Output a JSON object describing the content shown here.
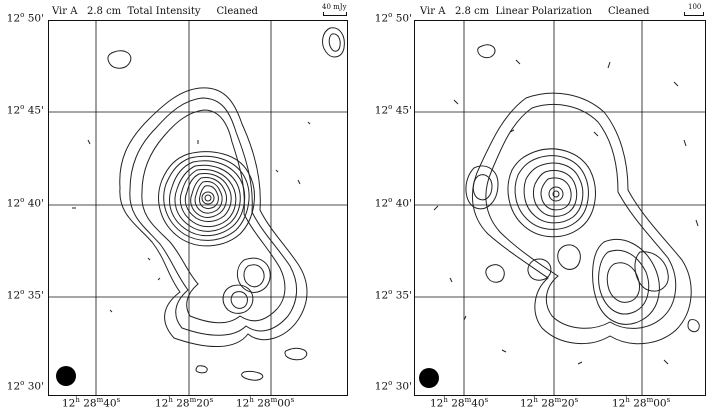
{
  "left": {
    "title_source": "Vir A",
    "title_wavelength": "2.8 cm",
    "title_mode": "Total Intensity",
    "title_status": "Cleaned",
    "scale_label": "40 mJy"
  },
  "right": {
    "title_source": "Vir A",
    "title_wavelength": "2.8 cm",
    "title_mode": "Linear Polarization",
    "title_status": "Cleaned",
    "scale_label": "100"
  },
  "axes": {
    "dec_ticks": [
      {
        "deg": "12",
        "deg_sym": "o",
        "min": "50",
        "min_sym": "'"
      },
      {
        "deg": "12",
        "deg_sym": "o",
        "min": "45",
        "min_sym": "'"
      },
      {
        "deg": "12",
        "deg_sym": "o",
        "min": "40",
        "min_sym": "'"
      },
      {
        "deg": "12",
        "deg_sym": "o",
        "min": "35",
        "min_sym": "'"
      },
      {
        "deg": "12",
        "deg_sym": "o",
        "min": "30",
        "min_sym": "'"
      }
    ],
    "ra_ticks": [
      {
        "h": "12",
        "h_sym": "h",
        "m": "28",
        "m_sym": "m",
        "s": "40",
        "s_sym": "s"
      },
      {
        "h": "12",
        "h_sym": "h",
        "m": "28",
        "m_sym": "m",
        "s": "20",
        "s_sym": "s"
      },
      {
        "h": "12",
        "h_sym": "h",
        "m": "28",
        "m_sym": "m",
        "s": "00",
        "s_sym": "s"
      }
    ]
  },
  "colors": {
    "ink": "#111111",
    "background": "#ffffff"
  }
}
